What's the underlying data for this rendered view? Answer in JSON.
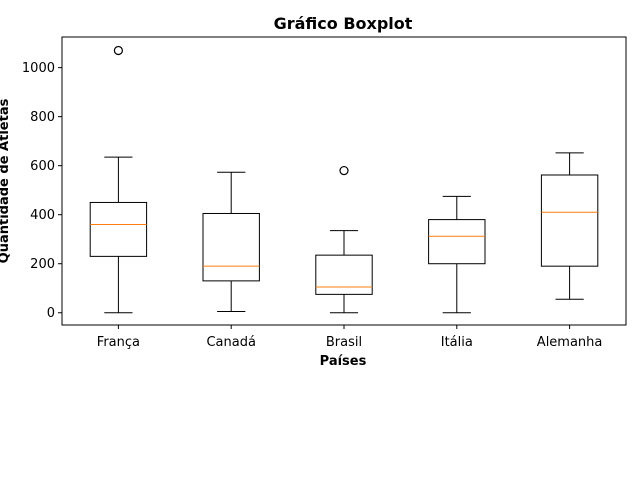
{
  "chart_data": {
    "type": "boxplot",
    "title": "Gráfico Boxplot",
    "xlabel": "Países",
    "ylabel": "Quantidade de Atletas",
    "ylim": [
      -50,
      1125
    ],
    "yticks": [
      0,
      200,
      400,
      600,
      800,
      1000
    ],
    "grid": false,
    "colors": {
      "box": "#000000",
      "median": "#ff7f0e",
      "background": "#ffffff"
    },
    "categories": [
      "França",
      "Canadá",
      "Brasil",
      "Itália",
      "Alemanha"
    ],
    "boxes": [
      {
        "name": "França",
        "whisker_low": 0,
        "q1": 230,
        "median": 360,
        "q3": 450,
        "whisker_high": 635,
        "outliers": [
          1070
        ]
      },
      {
        "name": "Canadá",
        "whisker_low": 5,
        "q1": 130,
        "median": 190,
        "q3": 405,
        "whisker_high": 573,
        "outliers": []
      },
      {
        "name": "Brasil",
        "whisker_low": 0,
        "q1": 75,
        "median": 105,
        "q3": 235,
        "whisker_high": 335,
        "outliers": [
          580
        ]
      },
      {
        "name": "Itália",
        "whisker_low": 0,
        "q1": 200,
        "median": 312,
        "q3": 380,
        "whisker_high": 475,
        "outliers": []
      },
      {
        "name": "Alemanha",
        "whisker_low": 55,
        "q1": 190,
        "median": 410,
        "q3": 562,
        "whisker_high": 652,
        "outliers": []
      }
    ]
  }
}
